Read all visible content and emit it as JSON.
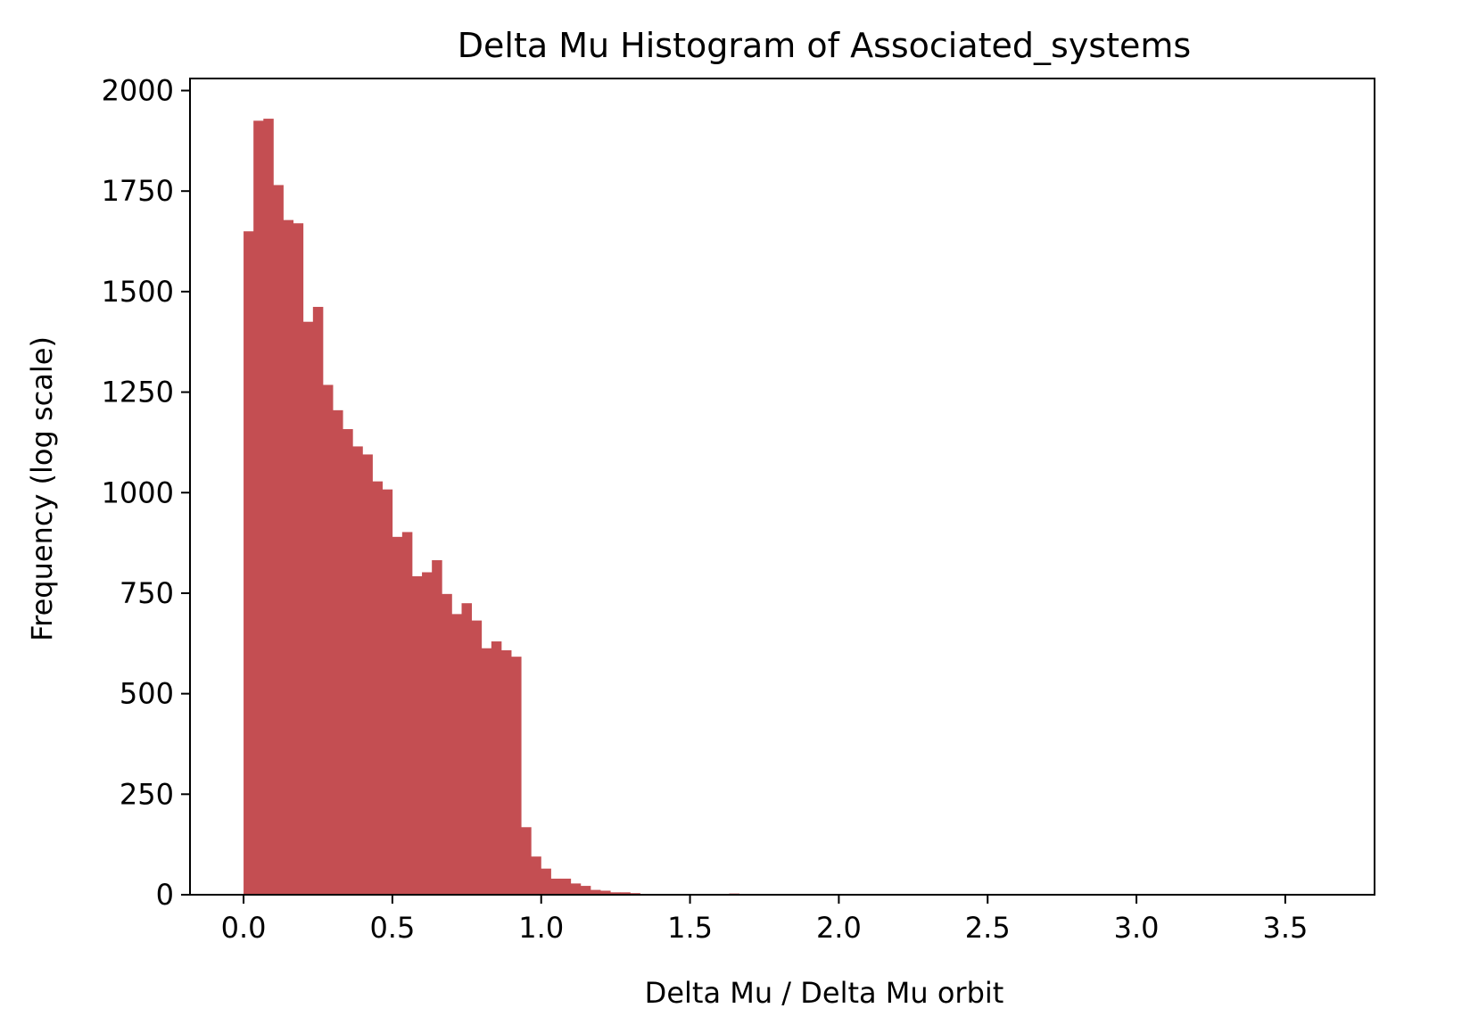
{
  "chart_data": {
    "type": "bar",
    "title": "Delta Mu Histogram of Associated_systems",
    "xlabel": "Delta Mu / Delta Mu orbit",
    "ylabel": "Frequency (log scale)",
    "xlim": [
      -0.18,
      3.8
    ],
    "ylim": [
      0,
      2030
    ],
    "x_ticks": [
      "0.0",
      "0.5",
      "1.0",
      "1.5",
      "2.0",
      "2.5",
      "3.0",
      "3.5"
    ],
    "x_tick_values": [
      0.0,
      0.5,
      1.0,
      1.5,
      2.0,
      2.5,
      3.0,
      3.5
    ],
    "y_ticks": [
      "0",
      "250",
      "500",
      "750",
      "1000",
      "1250",
      "1500",
      "1750",
      "2000"
    ],
    "y_tick_values": [
      0,
      250,
      500,
      750,
      1000,
      1250,
      1500,
      1750,
      2000
    ],
    "bin_start": 0.0,
    "bin_width": 0.0333,
    "counts": [
      1650,
      1925,
      1930,
      1765,
      1678,
      1670,
      1425,
      1462,
      1268,
      1205,
      1158,
      1115,
      1095,
      1028,
      1008,
      890,
      902,
      792,
      802,
      832,
      748,
      698,
      725,
      682,
      613,
      630,
      608,
      592,
      168,
      95,
      65,
      40,
      40,
      28,
      22,
      12,
      10,
      6,
      6,
      4,
      2,
      2,
      2,
      1,
      1,
      1,
      0,
      1,
      1,
      3
    ],
    "bar_color": "#c44e52",
    "grid": false
  }
}
